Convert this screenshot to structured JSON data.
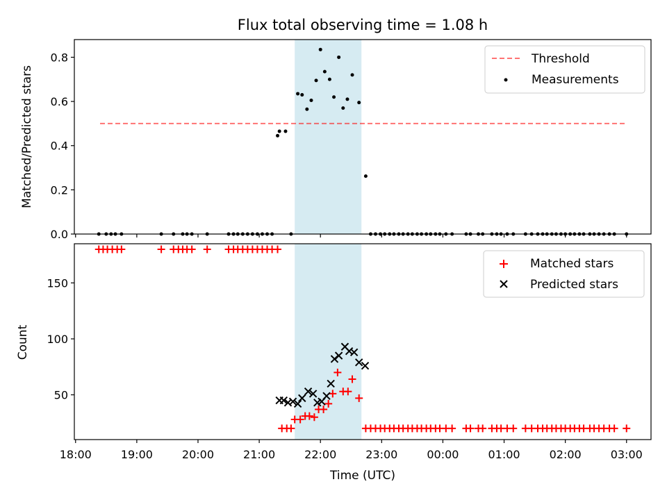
{
  "chart_data": [
    {
      "type": "scatter",
      "title": "Flux total observing time = 1.08 h",
      "xlabel": "",
      "ylabel": "Matched/Predicted stars",
      "ylim": [
        0,
        0.88
      ],
      "yticks": [
        0.0,
        0.2,
        0.4,
        0.6,
        0.8
      ],
      "ytick_labels": [
        "0.0",
        "0.2",
        "0.4",
        "0.6",
        "0.8"
      ],
      "xlim": [
        -0.02,
        9.4
      ],
      "x_unit": "hours after 18:00 UTC",
      "grid": false,
      "legend": {
        "placement": "top-right",
        "entries": [
          "Threshold",
          "Measurements"
        ]
      },
      "highlight_band": {
        "x": [
          3.58,
          4.67
        ],
        "color": "#add8e6"
      },
      "threshold": {
        "name": "Threshold",
        "x": [
          0.4,
          9.0
        ],
        "y": 0.5,
        "color": "#ff0000",
        "style": "dashed"
      },
      "series": [
        {
          "name": "Measurements",
          "color": "#000000",
          "marker": "dot",
          "x": [
            0.38,
            0.5,
            0.58,
            0.65,
            0.75,
            1.4,
            1.6,
            1.75,
            1.82,
            1.9,
            2.15,
            2.5,
            2.58,
            2.65,
            2.73,
            2.81,
            2.89,
            2.97,
            3.05,
            3.13,
            3.21,
            3.3,
            3.33,
            3.43,
            3.52,
            3.63,
            3.7,
            3.78,
            3.85,
            3.93,
            4.0,
            4.07,
            4.15,
            4.22,
            4.3,
            4.37,
            4.44,
            4.52,
            4.63,
            4.74,
            4.82,
            4.9,
            4.98,
            5.05,
            5.13,
            5.2,
            5.28,
            5.35,
            5.43,
            5.5,
            5.58,
            5.65,
            5.73,
            5.8,
            5.88,
            5.95,
            6.05,
            6.15,
            6.38,
            6.45,
            6.58,
            6.65,
            6.8,
            6.88,
            6.95,
            7.05,
            7.15,
            7.35,
            7.45,
            7.55,
            7.63,
            7.7,
            7.78,
            7.85,
            7.93,
            8.0,
            8.08,
            8.15,
            8.23,
            8.3,
            8.4,
            8.47,
            8.55,
            8.63,
            8.72,
            8.8,
            9.0
          ],
          "y": [
            0,
            0,
            0,
            0,
            0,
            0,
            0,
            0,
            0,
            0,
            0,
            0,
            0,
            0,
            0,
            0,
            0,
            0,
            0,
            0,
            0,
            0.445,
            0.465,
            0.465,
            0,
            0.635,
            0.63,
            0.565,
            0.605,
            0.695,
            0.835,
            0.735,
            0.7,
            0.62,
            0.8,
            0.57,
            0.61,
            0.72,
            0.595,
            0.262,
            0,
            0,
            0,
            0,
            0,
            0,
            0,
            0,
            0,
            0,
            0,
            0,
            0,
            0,
            0,
            0,
            0,
            0,
            0,
            0,
            0,
            0,
            0,
            0,
            0,
            0,
            0,
            0,
            0,
            0,
            0,
            0,
            0,
            0,
            0,
            0,
            0,
            0,
            0,
            0,
            0,
            0,
            0,
            0,
            0,
            0,
            0
          ]
        }
      ]
    },
    {
      "type": "scatter",
      "title": "",
      "xlabel": "Time (UTC)",
      "ylabel": "Count",
      "ylim": [
        10,
        185
      ],
      "yticks": [
        50,
        100,
        150
      ],
      "ytick_labels": [
        "50",
        "100",
        "150"
      ],
      "xlim": [
        -0.02,
        9.4
      ],
      "x_unit": "hours after 18:00 UTC",
      "xticks": [
        0,
        1,
        2,
        3,
        4,
        5,
        6,
        7,
        8,
        9
      ],
      "xtick_labels": [
        "18:00",
        "19:00",
        "20:00",
        "21:00",
        "22:00",
        "23:00",
        "00:00",
        "01:00",
        "02:00",
        "03:00"
      ],
      "grid": false,
      "legend": {
        "placement": "top-right",
        "entries": [
          "Matched stars",
          "Predicted stars"
        ]
      },
      "highlight_band": {
        "x": [
          3.58,
          4.67
        ],
        "color": "#add8e6"
      },
      "series": [
        {
          "name": "Matched stars",
          "color": "#ff0000",
          "marker": "plus",
          "x": [
            0.38,
            0.45,
            0.52,
            0.6,
            0.68,
            0.75,
            1.4,
            1.6,
            1.68,
            1.75,
            1.82,
            1.9,
            2.15,
            2.5,
            2.58,
            2.65,
            2.73,
            2.81,
            2.89,
            2.97,
            3.05,
            3.13,
            3.21,
            3.3,
            3.37,
            3.45,
            3.52,
            3.58,
            3.67,
            3.75,
            3.82,
            3.9,
            3.97,
            4.05,
            4.13,
            4.2,
            4.28,
            4.37,
            4.45,
            4.52,
            4.63,
            4.74,
            4.82,
            4.9,
            4.98,
            5.05,
            5.13,
            5.2,
            5.28,
            5.35,
            5.43,
            5.5,
            5.58,
            5.65,
            5.73,
            5.8,
            5.88,
            5.95,
            6.05,
            6.15,
            6.38,
            6.45,
            6.58,
            6.65,
            6.8,
            6.88,
            6.95,
            7.05,
            7.15,
            7.35,
            7.45,
            7.55,
            7.63,
            7.7,
            7.78,
            7.85,
            7.93,
            8.0,
            8.08,
            8.15,
            8.23,
            8.3,
            8.4,
            8.47,
            8.55,
            8.63,
            8.72,
            8.8,
            9.0
          ],
          "y": [
            180,
            180,
            180,
            180,
            180,
            180,
            180,
            180,
            180,
            180,
            180,
            180,
            180,
            180,
            180,
            180,
            180,
            180,
            180,
            180,
            180,
            180,
            180,
            180,
            20,
            20,
            20,
            28,
            28,
            31,
            31,
            30,
            37,
            37,
            42,
            51,
            70,
            53,
            53,
            64,
            47,
            20,
            20,
            20,
            20,
            20,
            20,
            20,
            20,
            20,
            20,
            20,
            20,
            20,
            20,
            20,
            20,
            20,
            20,
            20,
            20,
            20,
            20,
            20,
            20,
            20,
            20,
            20,
            20,
            20,
            20,
            20,
            20,
            20,
            20,
            20,
            20,
            20,
            20,
            20,
            20,
            20,
            20,
            20,
            20,
            20,
            20,
            20,
            20
          ]
        },
        {
          "name": "Predicted stars",
          "color": "#000000",
          "marker": "x",
          "x": [
            3.33,
            3.4,
            3.47,
            3.55,
            3.63,
            3.7,
            3.8,
            3.88,
            3.95,
            4.02,
            4.1,
            4.17,
            4.23,
            4.3,
            4.4,
            4.47,
            4.55,
            4.63,
            4.73
          ],
          "y": [
            45,
            45,
            43,
            44,
            42,
            47,
            53,
            51,
            43,
            44,
            49,
            60,
            82,
            85,
            93,
            89,
            88,
            79,
            76
          ]
        }
      ]
    }
  ]
}
